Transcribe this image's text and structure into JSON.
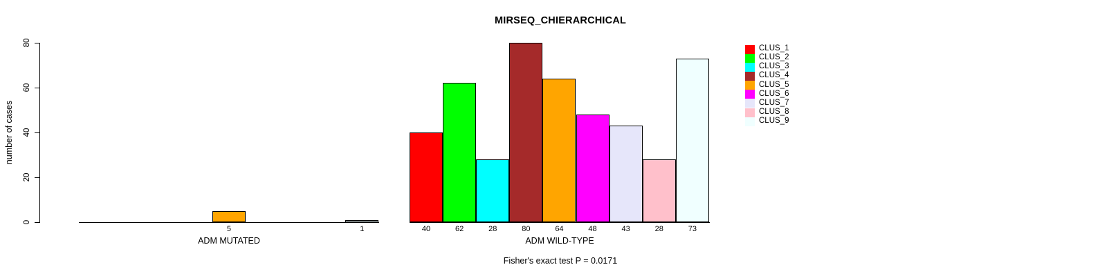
{
  "title": "MIRSEQ_CHIERARCHICAL",
  "footer": "Fisher's exact test P = 0.0171",
  "chart_data": {
    "type": "bar",
    "title": "MIRSEQ_CHIERARCHICAL",
    "ylabel": "number of cases",
    "xlabel": "",
    "ylim": [
      0,
      80
    ],
    "yticks": [
      "0",
      "20",
      "40",
      "60",
      "80"
    ],
    "grid": false,
    "legend_position": "right-outside",
    "bar_value_labels_shown": true,
    "series_labels": [
      "CLUS_1",
      "CLUS_2",
      "CLUS_3",
      "CLUS_4",
      "CLUS_5",
      "CLUS_6",
      "CLUS_7",
      "CLUS_8",
      "CLUS_9"
    ],
    "colors": [
      "#ff0000",
      "#00ff00",
      "#00ffff",
      "#a52a2a",
      "#ffa500",
      "#ff00ff",
      "#e6e6fa",
      "#ffc0cb",
      "#f0ffff"
    ],
    "groups": [
      {
        "label": "ADM MUTATED",
        "values": [
          0,
          0,
          0,
          0,
          5,
          0,
          0,
          0,
          1
        ]
      },
      {
        "label": "ADM WILD-TYPE",
        "values": [
          40,
          62,
          28,
          80,
          64,
          48,
          43,
          28,
          73
        ]
      }
    ],
    "annotation": "Fisher's exact test P = 0.0171"
  }
}
